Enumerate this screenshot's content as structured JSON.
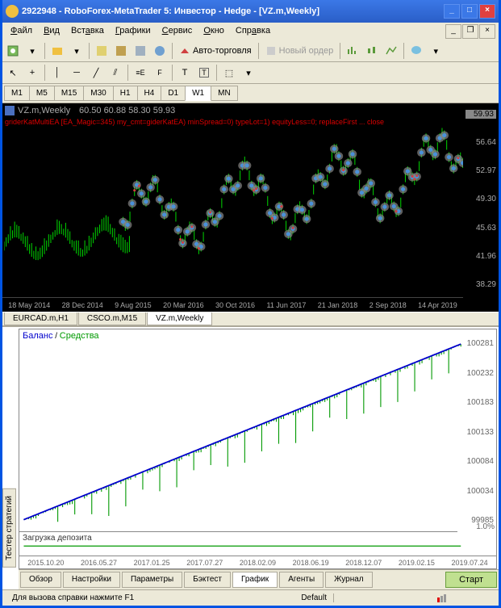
{
  "title": "2922948 - RoboForex-MetaTrader 5: Инвестор - Hedge - [VZ.m,Weekly]",
  "menu": [
    "Файл",
    "Вид",
    "Вставка",
    "Графики",
    "Сервис",
    "Окно",
    "Справка"
  ],
  "autotrading": "Авто-торговля",
  "neworder": "Новый ордер",
  "timeframes": [
    "M1",
    "M5",
    "M15",
    "M30",
    "H1",
    "H4",
    "D1",
    "W1",
    "MN"
  ],
  "tf_active": "W1",
  "chart": {
    "symbol": "VZ.m,Weekly",
    "ohlc": "60.50 60.88 58.30 59.93",
    "indicator": "griderKatMultiEA [EA_Magic=345) my_cmt=giderKatEA) minSpread=0) typeLot=1) equityLess=0; replaceFirst ... close",
    "prices": [
      "59.93",
      "56.64",
      "52.97",
      "49.30",
      "45.63",
      "41.96",
      "38.29"
    ],
    "dates": [
      "18 May 2014",
      "28 Dec 2014",
      "9 Aug 2015",
      "20 Mar 2016",
      "30 Oct 2016",
      "11 Jun 2017",
      "21 Jan 2018",
      "2 Sep 2018",
      "14 Apr 2019"
    ],
    "bg": "#000000",
    "candle_color": "#00cc00",
    "signal_color": "#4a90d9",
    "signal_halo": "#888888"
  },
  "chart_tabs": [
    "EURCAD.m,H1",
    "CSCO.m,M15",
    "VZ.m,Weekly"
  ],
  "chart_tab_active": "VZ.m,Weekly",
  "balance": {
    "label_balance": "Баланс",
    "label_equity": "Средства",
    "yticks": [
      "100281",
      "100232",
      "100183",
      "100133",
      "100084",
      "100034",
      "99985"
    ],
    "deposit_label": "Загрузка депозита",
    "deposit_pct": "1.0%",
    "xticks": [
      "2015.10.20",
      "2016.05.27",
      "2017.01.25",
      "2017.07.27",
      "2018.02.09",
      "2018.06.19",
      "2018.12.07",
      "2019.02.15",
      "2019.07.24"
    ],
    "balance_color": "#0000cc",
    "equity_color": "#009900"
  },
  "sidebar_tab": "Тестер стратегий",
  "tester_tabs": [
    "Обзор",
    "Настройки",
    "Параметры",
    "Бэктест",
    "График",
    "Агенты",
    "Журнал"
  ],
  "tester_tab_active": "График",
  "start_btn": "Старт",
  "status": {
    "help": "Для вызова справки нажмите F1",
    "profile": "Default"
  }
}
